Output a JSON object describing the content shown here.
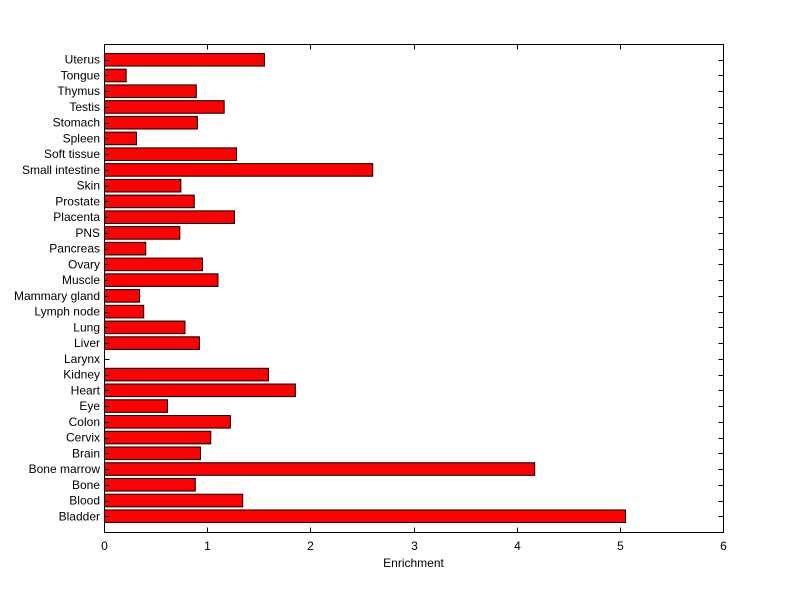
{
  "chart_data": {
    "type": "bar",
    "orientation": "horizontal",
    "title": "",
    "xlabel": "Enrichment",
    "ylabel": "",
    "xlim": [
      0,
      6
    ],
    "xticks": [
      0,
      1,
      2,
      3,
      4,
      5,
      6
    ],
    "grid": false,
    "legend": "none",
    "bar_color": "#ff0000",
    "edge_color": "#000000",
    "categories": [
      "Bladder",
      "Blood",
      "Bone",
      "Bone marrow",
      "Brain",
      "Cervix",
      "Colon",
      "Eye",
      "Heart",
      "Kidney",
      "Larynx",
      "Liver",
      "Lung",
      "Lymph node",
      "Mammary gland",
      "Muscle",
      "Ovary",
      "Pancreas",
      "PNS",
      "Placenta",
      "Prostate",
      "Skin",
      "Small intestine",
      "Soft tissue",
      "Spleen",
      "Stomach",
      "Testis",
      "Thymus",
      "Tongue",
      "Uterus"
    ],
    "values": [
      5.05,
      1.34,
      0.88,
      4.17,
      0.93,
      1.03,
      1.22,
      0.61,
      1.85,
      1.59,
      0.0,
      0.92,
      0.78,
      0.38,
      0.34,
      1.1,
      0.95,
      0.4,
      0.73,
      1.26,
      0.87,
      0.74,
      2.6,
      1.28,
      0.31,
      0.9,
      1.16,
      0.89,
      0.21,
      1.55
    ]
  }
}
